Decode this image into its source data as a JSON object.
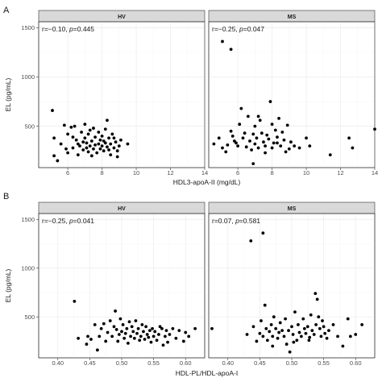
{
  "figure_tags": [
    "A",
    "B"
  ],
  "chart_data": [
    {
      "type": "scatter",
      "panel": "A",
      "xlabel": "HDL3-apoA-II (mg/dL)",
      "ylabel": "EL (pg/mL)",
      "xlim": [
        4.3,
        14.0
      ],
      "ylim": [
        80,
        1560
      ],
      "xticks": [
        6,
        8,
        10,
        12,
        14
      ],
      "xtick_labels": [
        "6",
        "8",
        "10",
        "12",
        "14"
      ],
      "yticks": [
        500,
        1000,
        1500
      ],
      "ytick_labels": [
        "500",
        "1000",
        "1500"
      ],
      "grid": true,
      "facets": [
        {
          "label": "HV",
          "stat_r": "r=−0.10, ",
          "stat_p_symbol": "p",
          "stat_p": "=0.445",
          "points": [
            [
              5.1,
              660
            ],
            [
              5.2,
              380
            ],
            [
              5.2,
              200
            ],
            [
              5.4,
              150
            ],
            [
              5.6,
              320
            ],
            [
              5.8,
              510
            ],
            [
              5.9,
              270
            ],
            [
              6.0,
              230
            ],
            [
              6.0,
              420
            ],
            [
              6.2,
              490
            ],
            [
              6.3,
              280
            ],
            [
              6.4,
              500
            ],
            [
              6.5,
              360
            ],
            [
              6.6,
              210
            ],
            [
              6.7,
              300
            ],
            [
              6.8,
              440
            ],
            [
              6.9,
              260
            ],
            [
              7.0,
              380
            ],
            [
              7.0,
              520
            ],
            [
              7.1,
              330
            ],
            [
              7.2,
              240
            ],
            [
              7.2,
              420
            ],
            [
              7.3,
              300
            ],
            [
              7.4,
              350
            ],
            [
              7.5,
              270
            ],
            [
              7.5,
              480
            ],
            [
              7.6,
              390
            ],
            [
              7.7,
              230
            ],
            [
              7.8,
              320
            ],
            [
              7.8,
              440
            ],
            [
              7.9,
              360
            ],
            [
              8.0,
              300
            ],
            [
              8.0,
              400
            ],
            [
              8.1,
              250
            ],
            [
              8.1,
              350
            ],
            [
              8.2,
              470
            ],
            [
              8.3,
              560
            ],
            [
              8.3,
              290
            ],
            [
              8.4,
              380
            ],
            [
              8.5,
              210
            ],
            [
              8.5,
              320
            ],
            [
              8.6,
              420
            ],
            [
              8.7,
              280
            ],
            [
              8.8,
              340
            ],
            [
              8.9,
              250
            ],
            [
              9.0,
              300
            ],
            [
              9.1,
              360
            ],
            [
              7.4,
              200
            ],
            [
              6.9,
              340
            ],
            [
              7.6,
              310
            ],
            [
              8.2,
              330
            ],
            [
              7.1,
              280
            ],
            [
              8.4,
              260
            ],
            [
              6.6,
              320
            ],
            [
              9.5,
              320
            ],
            [
              7.9,
              270
            ],
            [
              8.7,
              380
            ],
            [
              6.3,
              390
            ],
            [
              7.3,
              460
            ],
            [
              8.9,
              190
            ]
          ]
        },
        {
          "label": "MS",
          "stat_r": "r=−0.25, ",
          "stat_p_symbol": "p",
          "stat_p": "=0.047",
          "points": [
            [
              5.1,
              1360
            ],
            [
              5.6,
              1280
            ],
            [
              4.6,
              320
            ],
            [
              4.9,
              380
            ],
            [
              5.1,
              280
            ],
            [
              5.3,
              240
            ],
            [
              5.4,
              310
            ],
            [
              5.6,
              450
            ],
            [
              5.7,
              400
            ],
            [
              5.8,
              350
            ],
            [
              6.0,
              300
            ],
            [
              6.1,
              520
            ],
            [
              6.2,
              680
            ],
            [
              6.3,
              380
            ],
            [
              6.4,
              430
            ],
            [
              6.5,
              290
            ],
            [
              6.6,
              600
            ],
            [
              6.7,
              350
            ],
            [
              6.8,
              260
            ],
            [
              6.9,
              420
            ],
            [
              7.0,
              500
            ],
            [
              7.0,
              320
            ],
            [
              7.1,
              380
            ],
            [
              7.2,
              280
            ],
            [
              7.3,
              560
            ],
            [
              7.4,
              430
            ],
            [
              7.5,
              340
            ],
            [
              7.6,
              300
            ],
            [
              7.7,
              410
            ],
            [
              7.8,
              370
            ],
            [
              7.9,
              750
            ],
            [
              8.0,
              520
            ],
            [
              8.0,
              280
            ],
            [
              8.1,
              330
            ],
            [
              8.2,
              460
            ],
            [
              8.3,
              390
            ],
            [
              8.4,
              580
            ],
            [
              8.5,
              300
            ],
            [
              8.6,
              440
            ],
            [
              8.7,
              360
            ],
            [
              8.9,
              510
            ],
            [
              9.0,
              270
            ],
            [
              9.1,
              340
            ],
            [
              9.3,
              300
            ],
            [
              9.6,
              280
            ],
            [
              10.0,
              380
            ],
            [
              10.2,
              300
            ],
            [
              11.4,
              210
            ],
            [
              12.5,
              380
            ],
            [
              12.7,
              280
            ],
            [
              14.0,
              470
            ],
            [
              6.9,
              120
            ],
            [
              7.6,
              230
            ],
            [
              8.8,
              240
            ],
            [
              5.9,
              330
            ],
            [
              7.2,
              600
            ],
            [
              8.3,
              330
            ]
          ]
        }
      ]
    },
    {
      "type": "scatter",
      "panel": "B",
      "xlabel": "HDL-PL/HDL-apoA-I",
      "ylabel": "EL (pg/mL)",
      "xlim": [
        0.37,
        0.63
      ],
      "ylim": [
        80,
        1560
      ],
      "xticks": [
        0.4,
        0.45,
        0.5,
        0.55,
        0.6
      ],
      "xtick_labels": [
        "0.40",
        "0.45",
        "0.50",
        "0.55",
        "0.60"
      ],
      "yticks": [
        500,
        1000,
        1500
      ],
      "ytick_labels": [
        "500",
        "1000",
        "1500"
      ],
      "grid": true,
      "facets": [
        {
          "label": "HV",
          "stat_r": "r=−0.25, ",
          "stat_p_symbol": "p",
          "stat_p": "=0.041",
          "points": [
            [
              0.426,
              660
            ],
            [
              0.432,
              280
            ],
            [
              0.445,
              220
            ],
            [
              0.447,
              300
            ],
            [
              0.452,
              270
            ],
            [
              0.458,
              420
            ],
            [
              0.462,
              160
            ],
            [
              0.465,
              300
            ],
            [
              0.468,
              380
            ],
            [
              0.472,
              430
            ],
            [
              0.475,
              250
            ],
            [
              0.478,
              340
            ],
            [
              0.482,
              460
            ],
            [
              0.485,
              300
            ],
            [
              0.488,
              400
            ],
            [
              0.49,
              560
            ],
            [
              0.492,
              370
            ],
            [
              0.494,
              250
            ],
            [
              0.496,
              320
            ],
            [
              0.498,
              480
            ],
            [
              0.5,
              350
            ],
            [
              0.502,
              420
            ],
            [
              0.504,
              280
            ],
            [
              0.506,
              330
            ],
            [
              0.508,
              380
            ],
            [
              0.51,
              230
            ],
            [
              0.512,
              450
            ],
            [
              0.514,
              300
            ],
            [
              0.516,
              400
            ],
            [
              0.518,
              350
            ],
            [
              0.52,
              280
            ],
            [
              0.522,
              460
            ],
            [
              0.524,
              330
            ],
            [
              0.526,
              380
            ],
            [
              0.528,
              260
            ],
            [
              0.53,
              300
            ],
            [
              0.532,
              420
            ],
            [
              0.534,
              350
            ],
            [
              0.536,
              270
            ],
            [
              0.538,
              400
            ],
            [
              0.54,
              320
            ],
            [
              0.542,
              290
            ],
            [
              0.544,
              360
            ],
            [
              0.546,
              240
            ],
            [
              0.548,
              380
            ],
            [
              0.55,
              300
            ],
            [
              0.552,
              350
            ],
            [
              0.555,
              260
            ],
            [
              0.558,
              320
            ],
            [
              0.56,
              400
            ],
            [
              0.563,
              380
            ],
            [
              0.565,
              210
            ],
            [
              0.568,
              300
            ],
            [
              0.57,
              360
            ],
            [
              0.572,
              240
            ],
            [
              0.575,
              320
            ],
            [
              0.58,
              380
            ],
            [
              0.585,
              280
            ],
            [
              0.59,
              360
            ],
            [
              0.597,
              250
            ],
            [
              0.6,
              340
            ],
            [
              0.605,
              300
            ],
            [
              0.615,
              380
            ]
          ]
        },
        {
          "label": "MS",
          "stat_r": "r=0.07, ",
          "stat_p_symbol": "p",
          "stat_p": "=0.581",
          "points": [
            [
              0.436,
              1280
            ],
            [
              0.455,
              1360
            ],
            [
              0.375,
              380
            ],
            [
              0.43,
              320
            ],
            [
              0.44,
              400
            ],
            [
              0.445,
              250
            ],
            [
              0.45,
              330
            ],
            [
              0.452,
              460
            ],
            [
              0.455,
              300
            ],
            [
              0.458,
              620
            ],
            [
              0.46,
              380
            ],
            [
              0.462,
              260
            ],
            [
              0.465,
              350
            ],
            [
              0.468,
              420
            ],
            [
              0.47,
              300
            ],
            [
              0.472,
              500
            ],
            [
              0.475,
              380
            ],
            [
              0.478,
              280
            ],
            [
              0.48,
              340
            ],
            [
              0.482,
              440
            ],
            [
              0.485,
              360
            ],
            [
              0.488,
              300
            ],
            [
              0.49,
              480
            ],
            [
              0.492,
              220
            ],
            [
              0.495,
              360
            ],
            [
              0.497,
              140
            ],
            [
              0.5,
              400
            ],
            [
              0.502,
              320
            ],
            [
              0.505,
              550
            ],
            [
              0.508,
              260
            ],
            [
              0.51,
              420
            ],
            [
              0.512,
              340
            ],
            [
              0.515,
              300
            ],
            [
              0.518,
              480
            ],
            [
              0.52,
              380
            ],
            [
              0.522,
              330
            ],
            [
              0.525,
              400
            ],
            [
              0.528,
              290
            ],
            [
              0.53,
              520
            ],
            [
              0.532,
              360
            ],
            [
              0.535,
              320
            ],
            [
              0.537,
              740
            ],
            [
              0.54,
              680
            ],
            [
              0.542,
              500
            ],
            [
              0.544,
              380
            ],
            [
              0.546,
              300
            ],
            [
              0.548,
              460
            ],
            [
              0.55,
              400
            ],
            [
              0.552,
              330
            ],
            [
              0.555,
              280
            ],
            [
              0.558,
              360
            ],
            [
              0.565,
              420
            ],
            [
              0.572,
              300
            ],
            [
              0.58,
              200
            ],
            [
              0.588,
              480
            ],
            [
              0.592,
              300
            ],
            [
              0.6,
              320
            ],
            [
              0.61,
              420
            ],
            [
              0.47,
              200
            ],
            [
              0.527,
              260
            ],
            [
              0.503,
              240
            ],
            [
              0.538,
              420
            ]
          ]
        }
      ]
    }
  ]
}
